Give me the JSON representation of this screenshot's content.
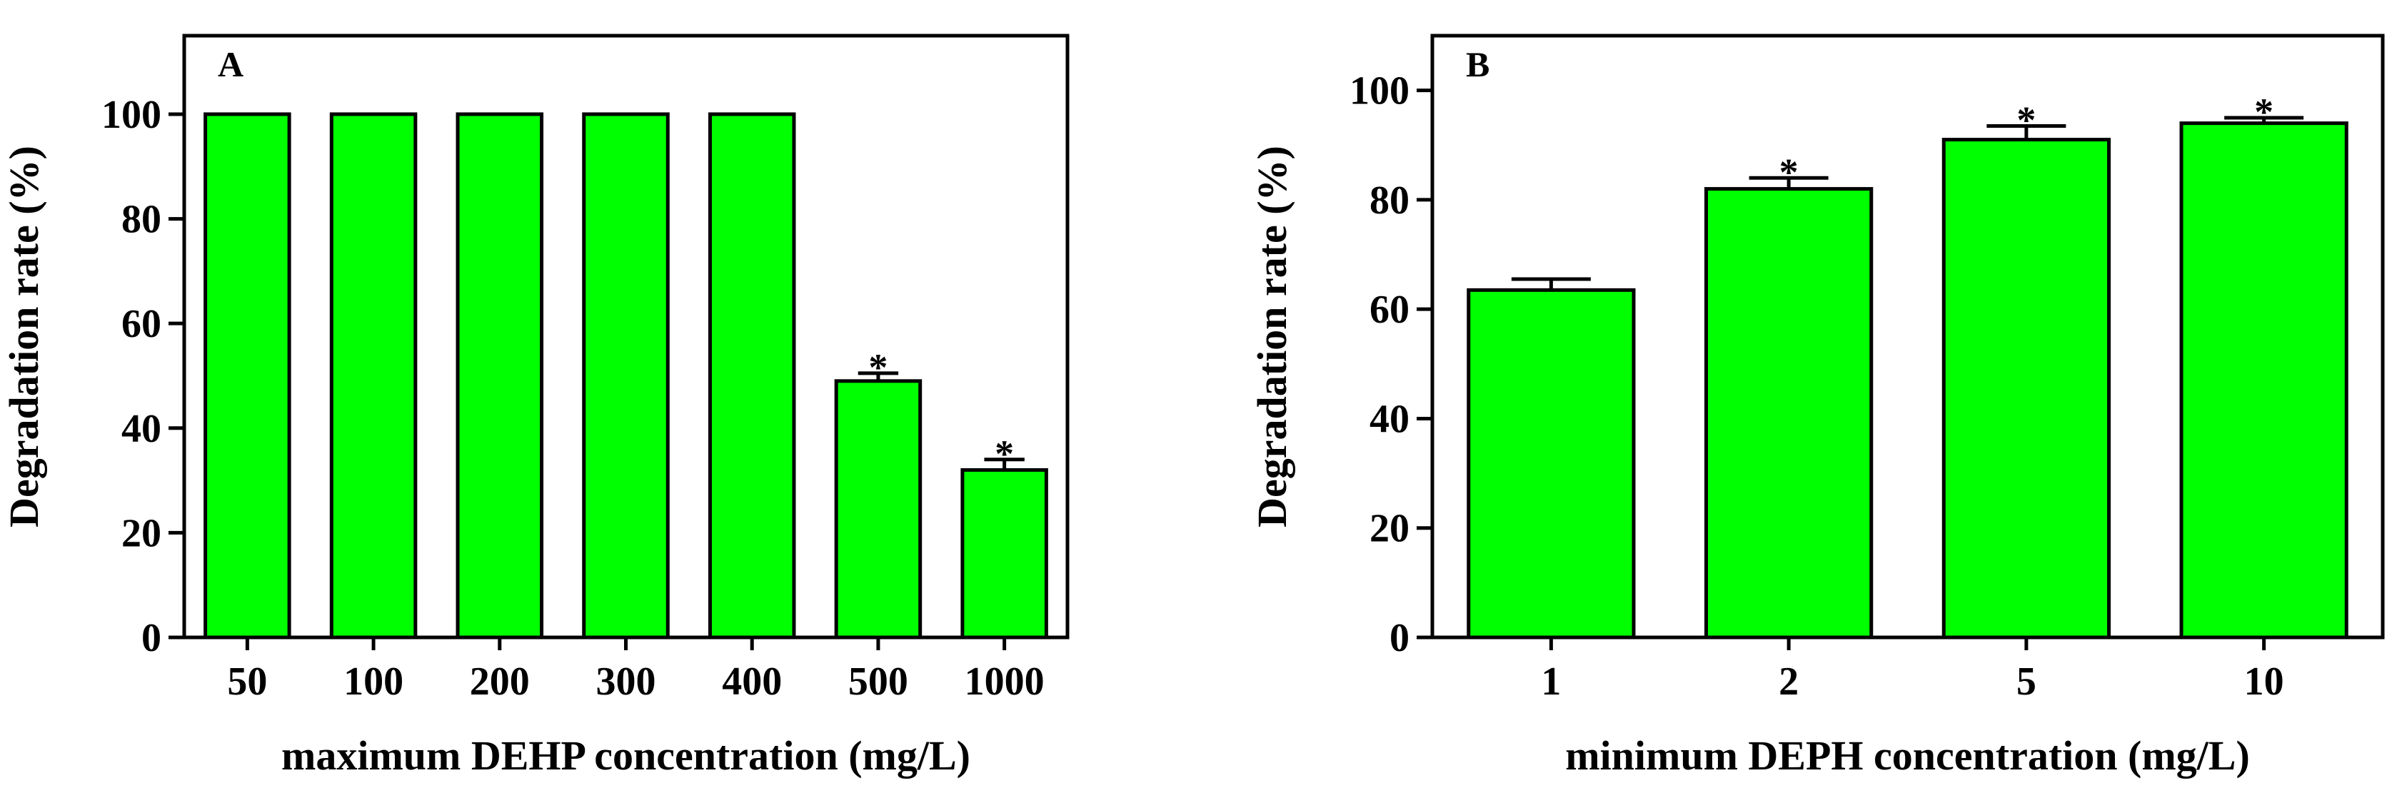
{
  "colors": {
    "bar_fill": "#00ff00",
    "bar_stroke": "#000000",
    "axis": "#000000",
    "background": "#ffffff"
  },
  "chart_data": [
    {
      "type": "bar",
      "panel_label": "A",
      "title": "",
      "xlabel": "maximum DEHP concentration (mg/L)",
      "ylabel": "Degradation rate (%)",
      "categories": [
        "50",
        "100",
        "200",
        "300",
        "400",
        "500",
        "1000"
      ],
      "values": [
        100,
        100,
        100,
        100,
        100,
        49,
        32
      ],
      "errors": [
        0,
        0,
        0,
        0,
        0,
        1.5,
        2
      ],
      "significance": [
        "",
        "",
        "",
        "",
        "",
        "*",
        "*"
      ],
      "ylim": [
        0,
        115
      ],
      "yticks": [
        0,
        20,
        40,
        60,
        80,
        100
      ],
      "grid": false
    },
    {
      "type": "bar",
      "panel_label": "B",
      "title": "",
      "xlabel": "minimum DEPH concentration (mg/L)",
      "ylabel": "Degradation rate (%)",
      "categories": [
        "1",
        "2",
        "5",
        "10"
      ],
      "values": [
        63.5,
        82,
        91,
        94
      ],
      "errors": [
        2,
        2,
        2.5,
        1
      ],
      "significance": [
        "",
        "*",
        "*",
        "*"
      ],
      "ylim": [
        0,
        110
      ],
      "yticks": [
        0,
        20,
        40,
        60,
        80,
        100
      ],
      "grid": false
    }
  ]
}
